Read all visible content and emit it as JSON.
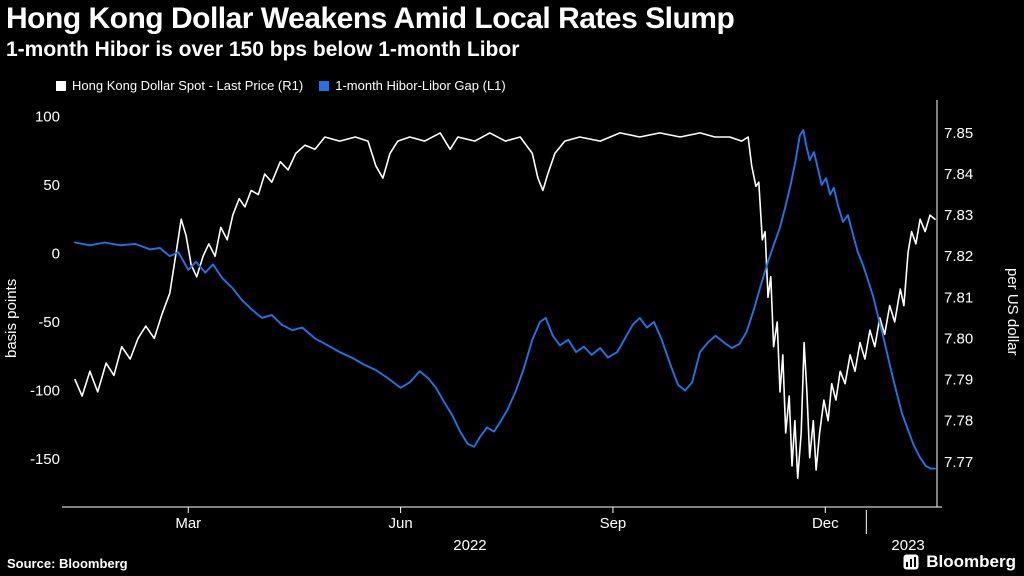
{
  "chart_data": {
    "type": "line",
    "title": "Hong Kong Dollar Weakens Amid Local Rates Slump",
    "subtitle": "1-month Hibor is over 150 bps below 1-month Libor",
    "background_color": "#000000",
    "grid": false,
    "legend_position": "top-left",
    "x_axis": {
      "unit": "months since 2022-01-01",
      "range": [
        0.4,
        12.55
      ],
      "month_ticks": [
        {
          "pos": 2.0,
          "label": "Mar"
        },
        {
          "pos": 5.0,
          "label": "Jun"
        },
        {
          "pos": 8.0,
          "label": "Sep"
        },
        {
          "pos": 11.0,
          "label": "Dec"
        }
      ],
      "year_labels": [
        {
          "pos": 5.98,
          "label": "2022"
        },
        {
          "pos": 12.17,
          "label": "2023"
        }
      ],
      "divider_pos": 11.58
    },
    "left_axis": {
      "label": "basis points",
      "ticks": [
        100,
        50,
        0,
        -50,
        -100,
        -150
      ],
      "range": [
        112,
        -185
      ]
    },
    "right_axis": {
      "label": "per US dollar",
      "ticks": [
        7.85,
        7.84,
        7.83,
        7.82,
        7.81,
        7.8,
        7.79,
        7.78,
        7.77
      ],
      "range": [
        7.858,
        7.759
      ]
    },
    "series": [
      {
        "name": "Hong Kong Dollar Spot - Last Price",
        "axis": "right",
        "color": "#ffffff",
        "x": [
          0.4,
          0.5,
          0.61,
          0.72,
          0.84,
          0.95,
          1.06,
          1.18,
          1.29,
          1.4,
          1.52,
          1.63,
          1.74,
          1.83,
          1.9,
          1.97,
          2.04,
          2.12,
          2.21,
          2.29,
          2.38,
          2.46,
          2.55,
          2.63,
          2.72,
          2.8,
          2.89,
          2.99,
          3.08,
          3.18,
          3.3,
          3.41,
          3.52,
          3.65,
          3.79,
          3.93,
          4.14,
          4.36,
          4.54,
          4.65,
          4.75,
          4.85,
          4.96,
          5.13,
          5.34,
          5.56,
          5.7,
          5.81,
          6.05,
          6.26,
          6.48,
          6.69,
          6.86,
          6.94,
          7.01,
          7.08,
          7.18,
          7.32,
          7.53,
          7.82,
          8.1,
          8.38,
          8.66,
          8.95,
          9.23,
          9.44,
          9.65,
          9.82,
          9.91,
          9.96,
          10.02,
          10.06,
          10.11,
          10.15,
          10.19,
          10.23,
          10.27,
          10.32,
          10.36,
          10.4,
          10.44,
          10.49,
          10.53,
          10.57,
          10.61,
          10.66,
          10.7,
          10.74,
          10.78,
          10.83,
          10.87,
          10.92,
          10.98,
          11.04,
          11.09,
          11.15,
          11.21,
          11.28,
          11.35,
          11.42,
          11.49,
          11.56,
          11.63,
          11.7,
          11.77,
          11.84,
          11.91,
          11.98,
          12.06,
          12.11,
          12.17,
          12.22,
          12.28,
          12.34,
          12.41,
          12.48,
          12.55
        ],
        "y": [
          7.79,
          7.786,
          7.792,
          7.787,
          7.794,
          7.791,
          7.798,
          7.795,
          7.8,
          7.803,
          7.8,
          7.806,
          7.811,
          7.821,
          7.829,
          7.825,
          7.818,
          7.815,
          7.82,
          7.823,
          7.82,
          7.827,
          7.824,
          7.83,
          7.834,
          7.832,
          7.836,
          7.835,
          7.84,
          7.838,
          7.843,
          7.841,
          7.845,
          7.847,
          7.846,
          7.849,
          7.848,
          7.849,
          7.848,
          7.842,
          7.839,
          7.845,
          7.848,
          7.849,
          7.848,
          7.85,
          7.846,
          7.849,
          7.848,
          7.85,
          7.848,
          7.849,
          7.845,
          7.839,
          7.836,
          7.84,
          7.845,
          7.848,
          7.849,
          7.848,
          7.85,
          7.849,
          7.85,
          7.849,
          7.85,
          7.849,
          7.849,
          7.848,
          7.849,
          7.842,
          7.837,
          7.838,
          7.824,
          7.826,
          7.81,
          7.815,
          7.798,
          7.804,
          7.787,
          7.796,
          7.777,
          7.786,
          7.769,
          7.78,
          7.766,
          7.777,
          7.799,
          7.787,
          7.771,
          7.78,
          7.768,
          7.777,
          7.785,
          7.78,
          7.789,
          7.785,
          7.792,
          7.789,
          7.796,
          7.792,
          7.799,
          7.795,
          7.802,
          7.798,
          7.805,
          7.801,
          7.808,
          7.804,
          7.812,
          7.808,
          7.821,
          7.826,
          7.823,
          7.829,
          7.826,
          7.83,
          7.829
        ]
      },
      {
        "name": "1-month Hibor-Libor Gap",
        "axis": "left",
        "color": "#2273e6",
        "x": [
          0.4,
          0.61,
          0.82,
          1.04,
          1.25,
          1.46,
          1.6,
          1.74,
          1.86,
          2.0,
          2.11,
          2.24,
          2.35,
          2.48,
          2.62,
          2.76,
          2.9,
          3.04,
          3.18,
          3.32,
          3.47,
          3.61,
          3.79,
          3.97,
          4.14,
          4.31,
          4.48,
          4.65,
          4.82,
          5.0,
          5.13,
          5.27,
          5.39,
          5.5,
          5.61,
          5.73,
          5.84,
          5.95,
          6.04,
          6.12,
          6.22,
          6.32,
          6.42,
          6.52,
          6.63,
          6.74,
          6.86,
          6.97,
          7.05,
          7.15,
          7.25,
          7.37,
          7.48,
          7.59,
          7.7,
          7.82,
          7.93,
          8.06,
          8.17,
          8.28,
          8.38,
          8.48,
          8.58,
          8.69,
          8.81,
          8.92,
          9.02,
          9.12,
          9.23,
          9.34,
          9.45,
          9.57,
          9.68,
          9.79,
          9.89,
          9.99,
          10.09,
          10.19,
          10.27,
          10.36,
          10.44,
          10.51,
          10.58,
          10.64,
          10.69,
          10.73,
          10.78,
          10.84,
          10.9,
          10.95,
          11.01,
          11.07,
          11.12,
          11.18,
          11.25,
          11.32,
          11.39,
          11.46,
          11.53,
          11.6,
          11.68,
          11.75,
          11.83,
          11.91,
          12.0,
          12.08,
          12.17,
          12.25,
          12.34,
          12.42,
          12.49,
          12.55
        ],
        "y": [
          8,
          6,
          8,
          6,
          7,
          3,
          4,
          -2,
          1,
          -12,
          -6,
          -14,
          -8,
          -18,
          -25,
          -34,
          -41,
          -47,
          -45,
          -52,
          -56,
          -54,
          -62,
          -67,
          -72,
          -76,
          -81,
          -85,
          -91,
          -98,
          -94,
          -86,
          -91,
          -98,
          -108,
          -118,
          -130,
          -139,
          -141,
          -134,
          -127,
          -130,
          -122,
          -113,
          -100,
          -84,
          -63,
          -50,
          -47,
          -60,
          -67,
          -63,
          -72,
          -68,
          -74,
          -69,
          -76,
          -72,
          -62,
          -52,
          -47,
          -54,
          -50,
          -63,
          -81,
          -96,
          -100,
          -94,
          -72,
          -65,
          -60,
          -65,
          -69,
          -66,
          -57,
          -41,
          -23,
          -6,
          6,
          19,
          35,
          50,
          68,
          86,
          90,
          79,
          68,
          74,
          61,
          50,
          55,
          43,
          48,
          35,
          23,
          28,
          14,
          1,
          -8,
          -19,
          -32,
          -47,
          -63,
          -81,
          -100,
          -116,
          -129,
          -140,
          -149,
          -155,
          -157,
          -157
        ]
      }
    ]
  },
  "legend": {
    "items": [
      {
        "label": "Hong Kong Dollar Spot - Last Price (R1)",
        "color": "#ffffff"
      },
      {
        "label": "1-month Hibor-Libor Gap (L1)",
        "color": "#2273e6"
      }
    ]
  },
  "footer": {
    "source": "Source: Bloomberg",
    "brand": "Bloomberg"
  }
}
